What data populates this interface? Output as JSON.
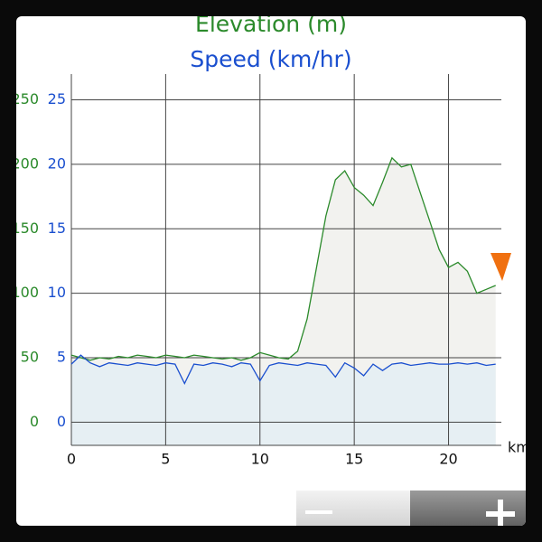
{
  "chart_data": {
    "type": "line",
    "title": "Elevation (m)",
    "subtitle": "Speed (km/hr)",
    "x_label": "km",
    "x": [
      0,
      0.5,
      1,
      1.5,
      2,
      2.5,
      3,
      3.5,
      4,
      4.5,
      5,
      5.5,
      6,
      6.5,
      7,
      7.5,
      8,
      8.5,
      9,
      9.5,
      10,
      10.5,
      11,
      11.5,
      12,
      12.5,
      13,
      13.5,
      14,
      14.5,
      15,
      15.5,
      16,
      16.5,
      17,
      17.5,
      18,
      18.5,
      19,
      19.5,
      20,
      20.5,
      21,
      21.5,
      22,
      22.5
    ],
    "series": [
      {
        "name": "Elevation (m)",
        "color": "#2b8a2b",
        "fill": "#f2f2ef",
        "axis": "y",
        "values": [
          52,
          50,
          48,
          50,
          49,
          51,
          50,
          52,
          51,
          50,
          52,
          51,
          50,
          52,
          51,
          50,
          49,
          50,
          48,
          50,
          54,
          52,
          50,
          49,
          55,
          80,
          120,
          160,
          188,
          195,
          182,
          176,
          168,
          186,
          205,
          198,
          200,
          178,
          156,
          134,
          120,
          124,
          117,
          100,
          103,
          106
        ]
      },
      {
        "name": "Speed (km/hr)",
        "color": "#1a4fcf",
        "fill": "#e6eff3",
        "axis": "y2",
        "values": [
          4.5,
          5.2,
          4.6,
          4.3,
          4.6,
          4.5,
          4.4,
          4.6,
          4.5,
          4.4,
          4.6,
          4.5,
          3.0,
          4.5,
          4.4,
          4.6,
          4.5,
          4.3,
          4.6,
          4.5,
          3.2,
          4.4,
          4.6,
          4.5,
          4.4,
          4.6,
          4.5,
          4.4,
          3.5,
          4.6,
          4.2,
          3.6,
          4.5,
          4.0,
          4.5,
          4.6,
          4.4,
          4.5,
          4.6,
          4.5,
          4.5,
          4.6,
          4.5,
          4.6,
          4.4,
          4.5
        ]
      }
    ],
    "xlim": [
      0,
      22.8
    ],
    "xticks": [
      0,
      5,
      10,
      15,
      20
    ],
    "ylim": [
      -18,
      270
    ],
    "yticks": [
      0,
      50,
      100,
      150,
      200,
      250
    ],
    "y2lim": [
      -1.8,
      27
    ],
    "y2ticks": [
      0,
      5,
      10,
      15,
      20,
      25
    ],
    "grid": true
  }
}
